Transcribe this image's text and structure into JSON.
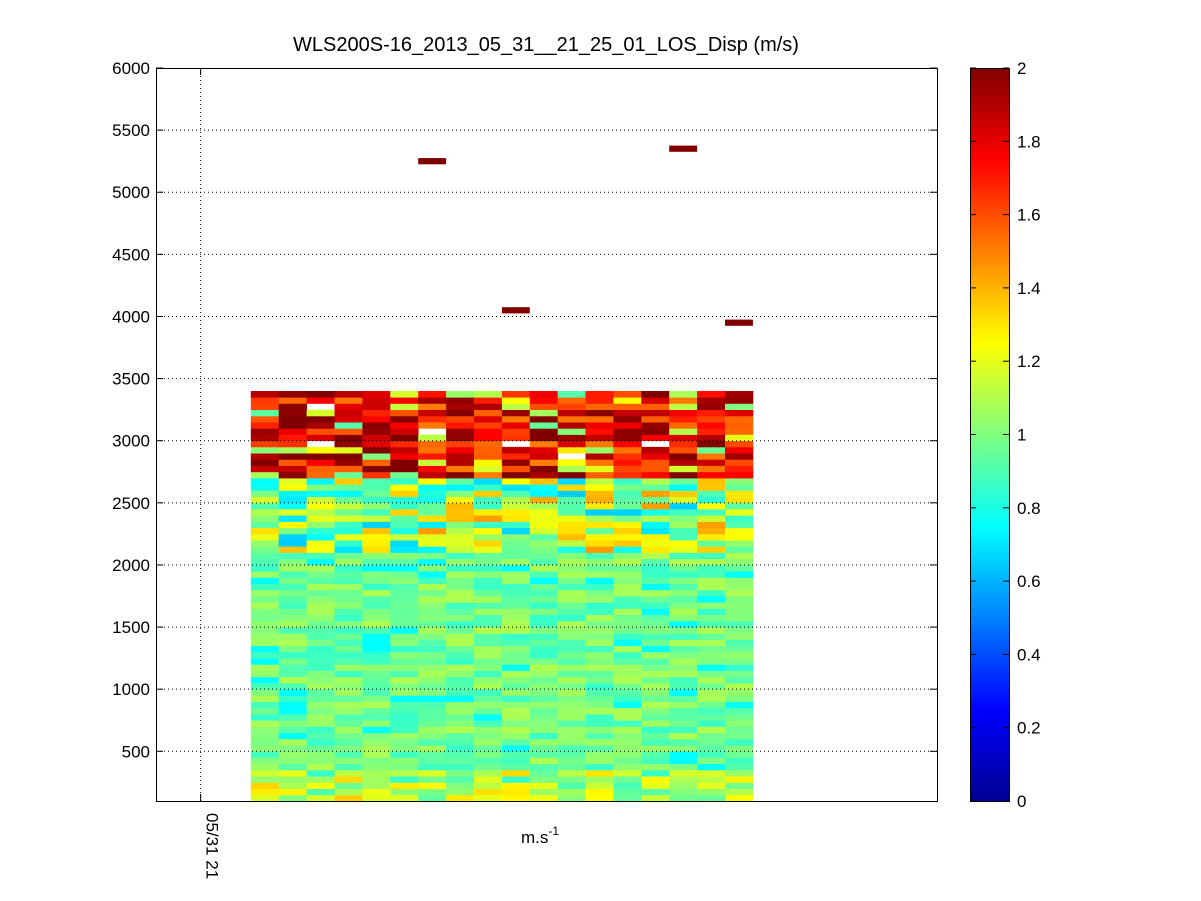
{
  "chart_data": {
    "type": "heatmap",
    "title": "WLS200S-16_2013_05_31__21_25_01_LOS_Disp (m/s)",
    "xlabel": "m.s",
    "xlabel_superscript": "-1",
    "ylabel": "",
    "ylim": [
      100,
      6000
    ],
    "yticks": [
      500,
      1000,
      1500,
      2000,
      2500,
      3000,
      3500,
      4000,
      4500,
      5000,
      5500,
      6000
    ],
    "xtick_labels": [
      "05/31 21"
    ],
    "grid": true,
    "grid_style": "dotted",
    "colormap": "jet",
    "colorbar": {
      "range": [
        0,
        2
      ],
      "ticks": [
        "0",
        "0.2",
        "0.4",
        "0.6",
        "0.8",
        "1",
        "1.2",
        "1.4",
        "1.6",
        "1.8",
        "2"
      ]
    },
    "x_extent": {
      "axis_range": [
        0,
        28
      ],
      "data_columns_start": 3.4,
      "column_count": 18
    },
    "altitude_rows": {
      "start_m": 100,
      "step_m": 50,
      "last_dense_m": 3400
    },
    "sparse_cells": [
      {
        "column": 6,
        "altitude_m": 5250,
        "value": 2.0
      },
      {
        "column": 15,
        "altitude_m": 5350,
        "value": 2.0
      },
      {
        "column": 9,
        "altitude_m": 4050,
        "value": 2.0
      },
      {
        "column": 17,
        "altitude_m": 3950,
        "value": 2.0
      }
    ],
    "missing_cells": [
      {
        "column": 2,
        "altitude_m": 3250
      },
      {
        "column": 6,
        "altitude_m": 3050
      },
      {
        "column": 2,
        "altitude_m": 2950
      },
      {
        "column": 11,
        "altitude_m": 2850
      },
      {
        "column": 9,
        "altitude_m": 2950
      },
      {
        "column": 14,
        "altitude_m": 2950
      }
    ]
  }
}
